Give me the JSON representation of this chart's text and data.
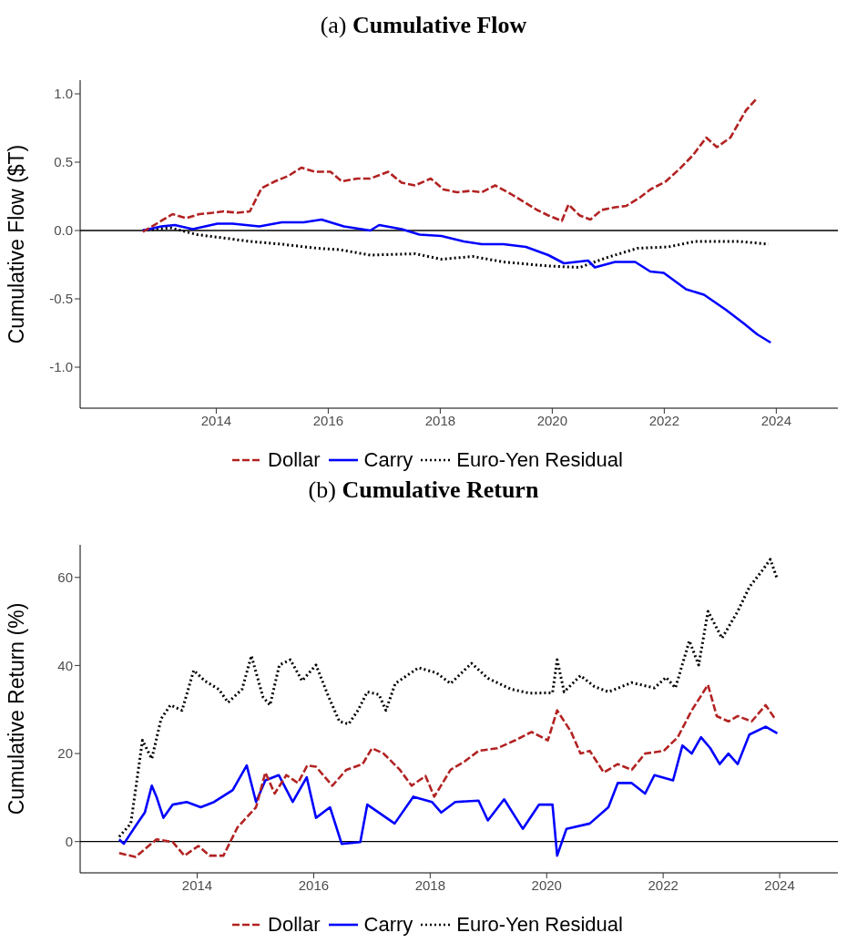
{
  "chart_data": [
    {
      "type": "line",
      "title": "(a) Cumulative Flow",
      "ylabel": "Cumulative Flow ($T)",
      "xlim": [
        2011.57,
        2025.1
      ],
      "xticks": [
        2014,
        2016,
        2018,
        2020,
        2022,
        2024
      ],
      "ylim": [
        -1.3,
        1.1
      ],
      "yticks": [
        {
          "value": -1,
          "label": "-1.0"
        },
        {
          "value": -0.5,
          "label": "-0.5"
        },
        {
          "value": 0,
          "label": "0.0"
        },
        {
          "value": 0.5,
          "label": "0.5"
        },
        {
          "value": 1,
          "label": "1.0"
        }
      ],
      "legend": "bottom",
      "ref_lines": [
        {
          "axis": "y",
          "value": 0,
          "color": "#000000"
        }
      ],
      "series": [
        {
          "name": "Dollar",
          "color": "#b22222",
          "line_style": "dashed",
          "x": [
            2012.69,
            2013.22,
            2013.46,
            2013.7,
            2013.94,
            2014.13,
            2014.37,
            2014.6,
            2014.81,
            2015.05,
            2015.29,
            2015.52,
            2015.76,
            2016.04,
            2016.24,
            2016.52,
            2016.75,
            2017.07,
            2017.31,
            2017.55,
            2017.83,
            2018.06,
            2018.3,
            2018.54,
            2018.74,
            2018.98,
            2019.25,
            2019.49,
            2019.73,
            2019.93,
            2020.17,
            2020.29,
            2020.49,
            2020.68,
            2020.88,
            2021.12,
            2021.32,
            2021.56,
            2021.75,
            2022.03,
            2022.27,
            2022.51,
            2022.75,
            2022.94,
            2023.18,
            2023.46,
            2023.66
          ],
          "values": [
            -0.01,
            0.12,
            0.09,
            0.12,
            0.13,
            0.14,
            0.13,
            0.14,
            0.31,
            0.36,
            0.4,
            0.46,
            0.43,
            0.43,
            0.36,
            0.38,
            0.38,
            0.43,
            0.35,
            0.33,
            0.38,
            0.3,
            0.28,
            0.29,
            0.28,
            0.33,
            0.27,
            0.21,
            0.15,
            0.11,
            0.07,
            0.19,
            0.11,
            0.08,
            0.15,
            0.17,
            0.18,
            0.24,
            0.3,
            0.36,
            0.45,
            0.55,
            0.68,
            0.61,
            0.68,
            0.88,
            0.97
          ]
        },
        {
          "name": "Carry",
          "color": "#0000ff",
          "line_style": "solid",
          "x": [
            2012.69,
            2013.02,
            2013.26,
            2013.58,
            2014.02,
            2014.29,
            2014.77,
            2015.17,
            2015.56,
            2015.88,
            2016.28,
            2016.75,
            2016.91,
            2017.31,
            2017.63,
            2018.02,
            2018.42,
            2018.74,
            2019.13,
            2019.53,
            2019.93,
            2020.21,
            2020.64,
            2020.76,
            2021.12,
            2021.48,
            2021.75,
            2021.99,
            2022.39,
            2022.71,
            2023.1,
            2023.42,
            2023.66,
            2023.9
          ],
          "values": [
            0,
            0.03,
            0.04,
            0.01,
            0.05,
            0.05,
            0.03,
            0.06,
            0.06,
            0.08,
            0.03,
            0,
            0.04,
            0.01,
            -0.03,
            -0.04,
            -0.08,
            -0.1,
            -0.1,
            -0.12,
            -0.18,
            -0.24,
            -0.22,
            -0.27,
            -0.23,
            -0.23,
            -0.3,
            -0.31,
            -0.43,
            -0.47,
            -0.58,
            -0.68,
            -0.76,
            -0.82
          ]
        },
        {
          "name": "Euro-Yen Residual",
          "color": "#000000",
          "line_style": "dotted",
          "x": [
            2012.69,
            2013.18,
            2013.66,
            2014.05,
            2014.6,
            2015.17,
            2015.8,
            2016.2,
            2016.75,
            2017.55,
            2018.02,
            2018.58,
            2019.13,
            2019.93,
            2020.49,
            2020.96,
            2021.52,
            2022.07,
            2022.55,
            2022.94,
            2023.34,
            2023.86
          ],
          "values": [
            0,
            0.02,
            -0.03,
            -0.05,
            -0.08,
            -0.1,
            -0.13,
            -0.14,
            -0.18,
            -0.17,
            -0.21,
            -0.19,
            -0.23,
            -0.26,
            -0.27,
            -0.2,
            -0.13,
            -0.12,
            -0.08,
            -0.08,
            -0.08,
            -0.1
          ]
        }
      ]
    },
    {
      "type": "line",
      "title": "(b) Cumulative Return",
      "ylabel": "Cumulative Return (%)",
      "xlim": [
        2011.99,
        2025.0
      ],
      "xticks": [
        2014,
        2016,
        2018,
        2020,
        2022,
        2024
      ],
      "ylim": [
        -7.1,
        67.4
      ],
      "yticks": [
        0,
        20,
        40,
        60
      ],
      "legend": "bottom",
      "ref_lines": [
        {
          "axis": "y",
          "value": 0,
          "color": "#000000"
        }
      ],
      "series": [
        {
          "name": "Dollar",
          "color": "#b22222",
          "line_style": "dashed",
          "x": [
            2012.66,
            2012.94,
            2013.3,
            2013.58,
            2013.78,
            2014.02,
            2014.21,
            2014.45,
            2014.69,
            2015.01,
            2015.17,
            2015.33,
            2015.53,
            2015.73,
            2015.89,
            2016.04,
            2016.32,
            2016.56,
            2016.84,
            2017.0,
            2017.2,
            2017.48,
            2017.68,
            2017.92,
            2018.07,
            2018.35,
            2018.59,
            2018.83,
            2019.15,
            2019.46,
            2019.74,
            2020.02,
            2020.18,
            2020.42,
            2020.58,
            2020.74,
            2020.98,
            2021.22,
            2021.46,
            2021.69,
            2022.01,
            2022.25,
            2022.49,
            2022.77,
            2022.92,
            2023.12,
            2023.28,
            2023.52,
            2023.76,
            2023.92
          ],
          "values": [
            -2.6,
            -3.5,
            0.5,
            -0.1,
            -3.2,
            -1,
            -3.2,
            -3.2,
            3.2,
            7.8,
            15.7,
            10.9,
            15.1,
            13.3,
            17.3,
            17,
            12.7,
            16.3,
            17.6,
            21.2,
            20,
            16.3,
            12.7,
            14.9,
            10.2,
            16.3,
            18.2,
            20.6,
            21.2,
            23,
            24.9,
            23,
            29.8,
            24.9,
            20,
            20.6,
            15.7,
            17.6,
            16.3,
            20,
            20.6,
            23.7,
            29.8,
            35.6,
            28.5,
            27.3,
            28.5,
            27.3,
            31,
            27.9
          ]
        },
        {
          "name": "Carry",
          "color": "#0000ff",
          "line_style": "solid",
          "x": [
            2012.66,
            2012.74,
            2012.94,
            2013.1,
            2013.22,
            2013.3,
            2013.42,
            2013.58,
            2013.82,
            2014.06,
            2014.29,
            2014.61,
            2014.85,
            2015.01,
            2015.17,
            2015.4,
            2015.64,
            2015.88,
            2016.04,
            2016.28,
            2016.48,
            2016.8,
            2016.92,
            2017.39,
            2017.71,
            2018.03,
            2018.19,
            2018.43,
            2018.83,
            2018.99,
            2019.27,
            2019.59,
            2019.87,
            2020.1,
            2020.18,
            2020.34,
            2020.74,
            2021.06,
            2021.22,
            2021.46,
            2021.69,
            2021.85,
            2022.17,
            2022.33,
            2022.49,
            2022.65,
            2022.81,
            2022.97,
            2023.12,
            2023.28,
            2023.48,
            2023.76,
            2023.96
          ],
          "values": [
            0.5,
            -0.5,
            3.5,
            6.6,
            12.7,
            10.2,
            5.4,
            8.4,
            9,
            7.8,
            9,
            11.7,
            17.3,
            9,
            13.9,
            15.1,
            9,
            14.6,
            5.4,
            7.8,
            -0.5,
            -0.1,
            8.4,
            4.1,
            10.2,
            9,
            6.6,
            9,
            9.3,
            4.8,
            9.6,
            2.9,
            8.4,
            8.4,
            -3.2,
            2.9,
            4.1,
            7.8,
            13.3,
            13.3,
            10.9,
            15.1,
            13.9,
            21.8,
            20,
            23.7,
            21.2,
            17.6,
            20,
            17.6,
            24.3,
            26.1,
            24.6
          ]
        },
        {
          "name": "Euro-Yen Residual",
          "color": "#000000",
          "line_style": "dotted",
          "x": [
            2012.66,
            2012.86,
            2013.06,
            2013.22,
            2013.38,
            2013.54,
            2013.74,
            2013.94,
            2014.13,
            2014.37,
            2014.53,
            2014.77,
            2014.93,
            2015.13,
            2015.25,
            2015.41,
            2015.6,
            2015.8,
            2016.04,
            2016.24,
            2016.44,
            2016.6,
            2016.76,
            2016.92,
            2017.12,
            2017.24,
            2017.4,
            2017.8,
            2018.11,
            2018.35,
            2018.71,
            2018.99,
            2019.39,
            2019.71,
            2020.1,
            2020.18,
            2020.3,
            2020.58,
            2020.82,
            2021.06,
            2021.46,
            2021.85,
            2022.05,
            2022.21,
            2022.45,
            2022.61,
            2022.77,
            2023.01,
            2023.09,
            2023.28,
            2023.48,
            2023.68,
            2023.84,
            2023.96
          ],
          "values": [
            1.1,
            4.1,
            23,
            18.8,
            27.9,
            31,
            29.8,
            38.9,
            36.5,
            34.6,
            31.6,
            34.6,
            42.2,
            32.8,
            31,
            40.1,
            41.3,
            36.5,
            40.1,
            33.4,
            27.3,
            26.7,
            29.8,
            34,
            33.4,
            29.8,
            35.9,
            39.5,
            38.3,
            35.9,
            40.5,
            37.1,
            34.6,
            33.7,
            33.8,
            41.3,
            34,
            37.7,
            35.2,
            34,
            36.1,
            34.9,
            37.3,
            34.9,
            45.6,
            40.1,
            52.3,
            46.2,
            48,
            52.3,
            57.8,
            61.2,
            64.1,
            59.6
          ]
        }
      ]
    }
  ]
}
